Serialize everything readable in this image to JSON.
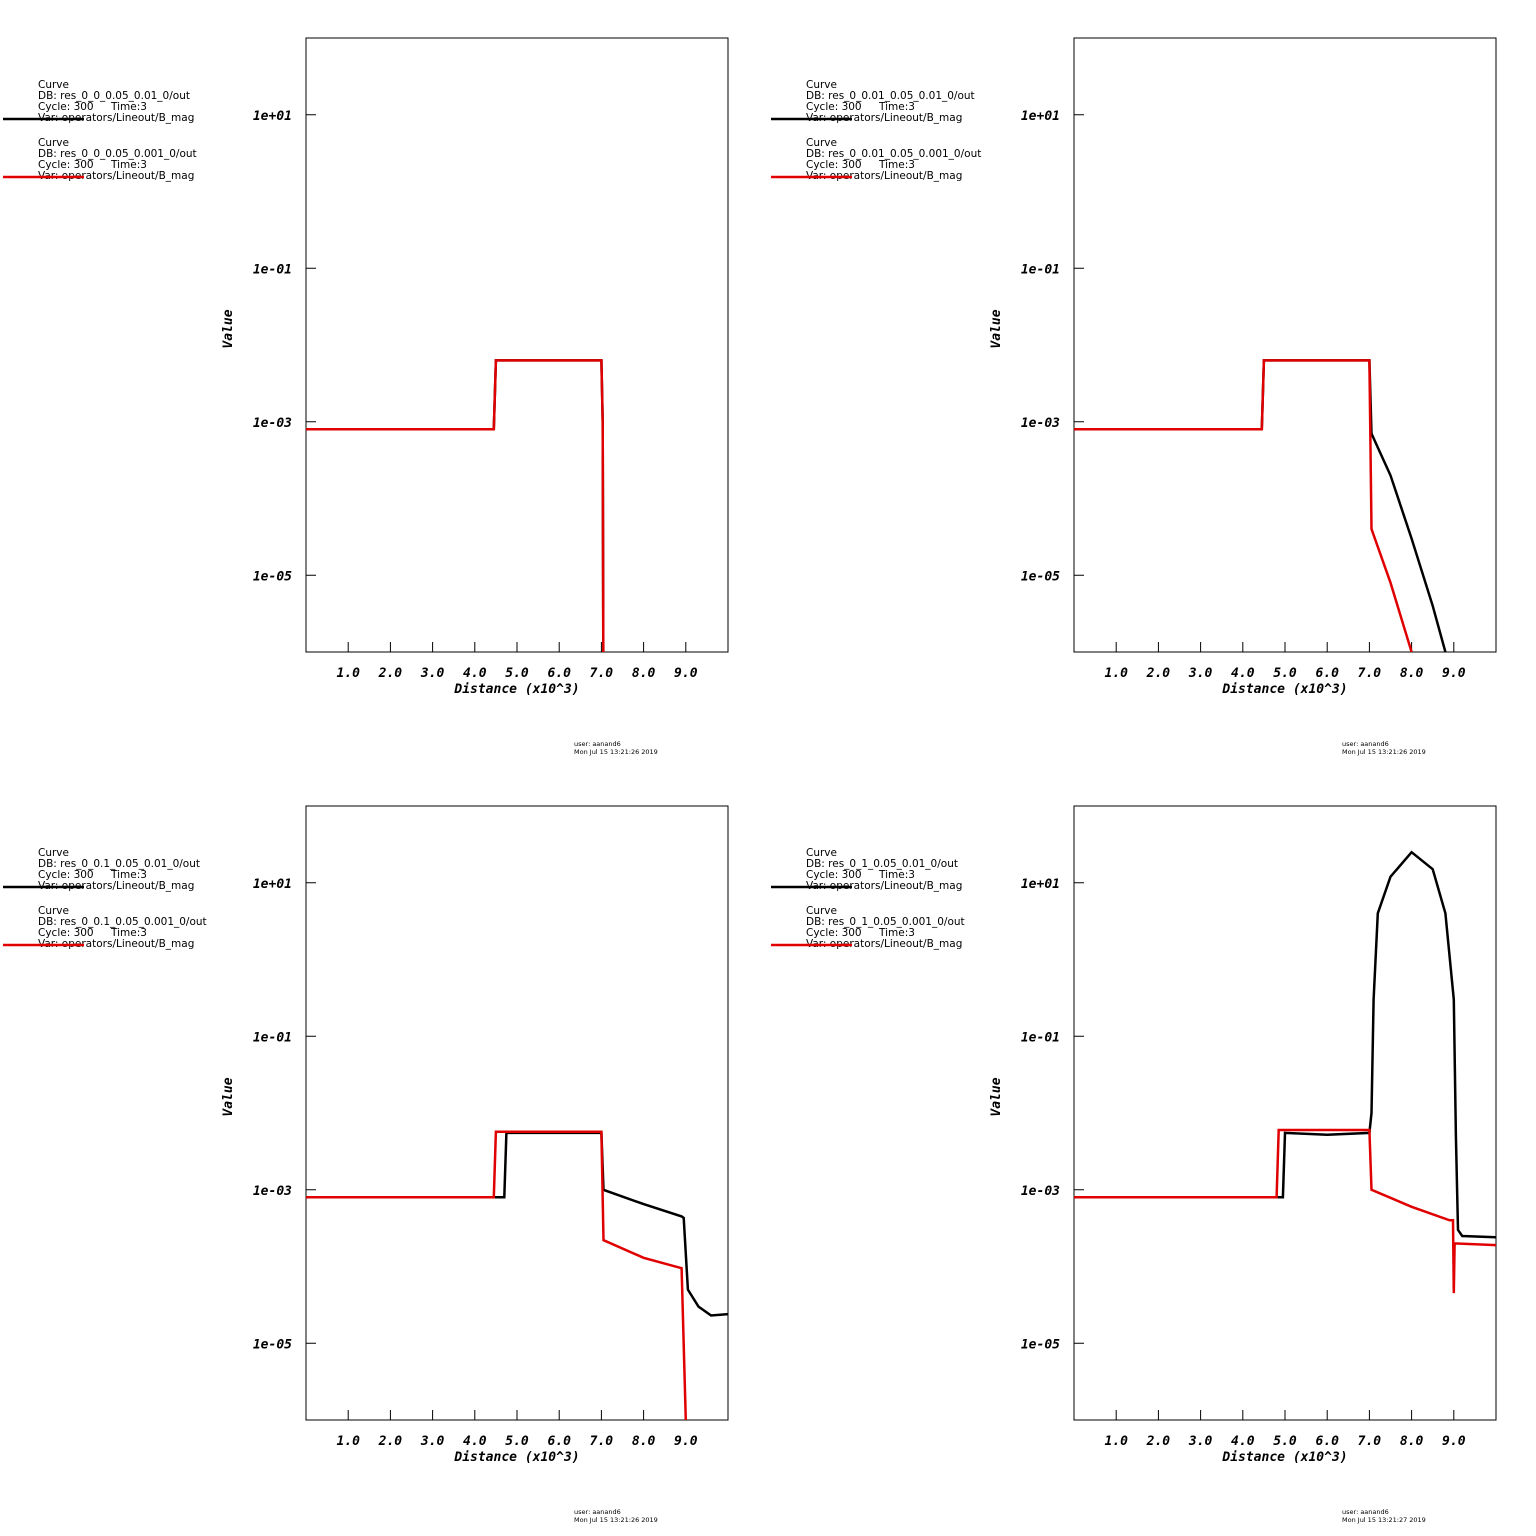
{
  "chart_data": [
    {
      "type": "line",
      "log_y": true,
      "x_label": "Distance (x10^3)",
      "y_label": "Value",
      "xlim": [
        0,
        10
      ],
      "ylim": [
        1e-06,
        100
      ],
      "xticks": [
        {
          "value": 1,
          "label": "1.0"
        },
        {
          "value": 2,
          "label": "2.0"
        },
        {
          "value": 3,
          "label": "3.0"
        },
        {
          "value": 4,
          "label": "4.0"
        },
        {
          "value": 5,
          "label": "5.0"
        },
        {
          "value": 6,
          "label": "6.0"
        },
        {
          "value": 7,
          "label": "7.0"
        },
        {
          "value": 8,
          "label": "8.0"
        },
        {
          "value": 9,
          "label": "9.0"
        }
      ],
      "yticks": [
        {
          "value": 10,
          "label": "1e+01"
        },
        {
          "value": 0.1,
          "label": "1e-01"
        },
        {
          "value": 0.001,
          "label": "1e-03"
        },
        {
          "value": 1e-05,
          "label": "1e-05"
        }
      ],
      "user": "user: aanand6",
      "date": "Mon Jul 15 13:21:26 2019",
      "series": [
        {
          "name": "Curve",
          "db": "DB: res_0_0_0.05_0.01_0/out",
          "cycle": "Cycle: 300",
          "time": "Time:3",
          "var": "Var: operators/Lineout/B_mag",
          "color": "#000000",
          "x": [
            0,
            4.45,
            4.5,
            7.0,
            7.03,
            7.05
          ],
          "values": [
            0.0008,
            0.0008,
            0.0063,
            0.0063,
            0.001,
            1e-07
          ]
        },
        {
          "name": "Curve",
          "db": "DB: res_0_0_0.05_0.001_0/out",
          "cycle": "Cycle: 300",
          "time": "Time:3",
          "var": "Var: operators/Lineout/B_mag",
          "color": "#e00000",
          "x": [
            0,
            4.45,
            4.5,
            7.0,
            7.03,
            7.05
          ],
          "values": [
            0.0008,
            0.0008,
            0.0063,
            0.0063,
            0.001,
            1e-07
          ]
        }
      ]
    },
    {
      "type": "line",
      "log_y": true,
      "x_label": "Distance (x10^3)",
      "y_label": "Value",
      "xlim": [
        0,
        10
      ],
      "ylim": [
        1e-06,
        100
      ],
      "xticks": [
        {
          "value": 1,
          "label": "1.0"
        },
        {
          "value": 2,
          "label": "2.0"
        },
        {
          "value": 3,
          "label": "3.0"
        },
        {
          "value": 4,
          "label": "4.0"
        },
        {
          "value": 5,
          "label": "5.0"
        },
        {
          "value": 6,
          "label": "6.0"
        },
        {
          "value": 7,
          "label": "7.0"
        },
        {
          "value": 8,
          "label": "8.0"
        },
        {
          "value": 9,
          "label": "9.0"
        }
      ],
      "yticks": [
        {
          "value": 10,
          "label": "1e+01"
        },
        {
          "value": 0.1,
          "label": "1e-01"
        },
        {
          "value": 0.001,
          "label": "1e-03"
        },
        {
          "value": 1e-05,
          "label": "1e-05"
        }
      ],
      "user": "user: aanand6",
      "date": "Mon Jul 15 13:21:26 2019",
      "series": [
        {
          "name": "Curve",
          "db": "DB: res_0_0.01_0.05_0.01_0/out",
          "cycle": "Cycle: 300",
          "time": "Time:3",
          "var": "Var: operators/Lineout/B_mag",
          "color": "#000000",
          "x": [
            0,
            4.45,
            4.5,
            7.0,
            7.05,
            7.5,
            8.0,
            8.5,
            8.8
          ],
          "values": [
            0.0008,
            0.0008,
            0.0063,
            0.0063,
            0.0007,
            0.0002,
            3e-05,
            4e-06,
            1e-06
          ]
        },
        {
          "name": "Curve",
          "db": "DB: res_0_0.01_0.05_0.001_0/out",
          "cycle": "Cycle: 300",
          "time": "Time:3",
          "var": "Var: operators/Lineout/B_mag",
          "color": "#e00000",
          "x": [
            0,
            4.45,
            4.5,
            7.0,
            7.05,
            7.5,
            8.0
          ],
          "values": [
            0.0008,
            0.0008,
            0.0063,
            0.0063,
            4e-05,
            8e-06,
            1e-06
          ]
        }
      ]
    },
    {
      "type": "line",
      "log_y": true,
      "x_label": "Distance (x10^3)",
      "y_label": "Value",
      "xlim": [
        0,
        10
      ],
      "ylim": [
        1e-06,
        100
      ],
      "xticks": [
        {
          "value": 1,
          "label": "1.0"
        },
        {
          "value": 2,
          "label": "2.0"
        },
        {
          "value": 3,
          "label": "3.0"
        },
        {
          "value": 4,
          "label": "4.0"
        },
        {
          "value": 5,
          "label": "5.0"
        },
        {
          "value": 6,
          "label": "6.0"
        },
        {
          "value": 7,
          "label": "7.0"
        },
        {
          "value": 8,
          "label": "8.0"
        },
        {
          "value": 9,
          "label": "9.0"
        }
      ],
      "yticks": [
        {
          "value": 10,
          "label": "1e+01"
        },
        {
          "value": 0.1,
          "label": "1e-01"
        },
        {
          "value": 0.001,
          "label": "1e-03"
        },
        {
          "value": 1e-05,
          "label": "1e-05"
        }
      ],
      "user": "user: aanand6",
      "date": "Mon Jul 15 13:21:26 2019",
      "series": [
        {
          "name": "Curve",
          "db": "DB: res_0_0.1_0.05_0.01_0/out",
          "cycle": "Cycle: 300",
          "time": "Time:3",
          "var": "Var: operators/Lineout/B_mag",
          "color": "#000000",
          "x": [
            0,
            4.7,
            4.75,
            7.0,
            7.05,
            8.0,
            8.9,
            8.95,
            9.05,
            9.3,
            9.6,
            10
          ],
          "values": [
            0.0008,
            0.0008,
            0.0055,
            0.0055,
            0.001,
            0.00065,
            0.00045,
            0.00043,
            5e-05,
            3e-05,
            2.3e-05,
            2.4e-05
          ]
        },
        {
          "name": "Curve",
          "db": "DB: res_0_0.1_0.05_0.001_0/out",
          "cycle": "Cycle: 300",
          "time": "Time:3",
          "var": "Var: operators/Lineout/B_mag",
          "color": "#e00000",
          "x": [
            0,
            4.45,
            4.5,
            7.0,
            7.05,
            8.0,
            8.9,
            9.05
          ],
          "values": [
            0.0008,
            0.0008,
            0.0057,
            0.0057,
            0.00022,
            0.00013,
            9.5e-05,
            1e-07
          ]
        }
      ]
    },
    {
      "type": "line",
      "log_y": true,
      "x_label": "Distance (x10^3)",
      "y_label": "Value",
      "xlim": [
        0,
        10
      ],
      "ylim": [
        1e-06,
        100
      ],
      "xticks": [
        {
          "value": 1,
          "label": "1.0"
        },
        {
          "value": 2,
          "label": "2.0"
        },
        {
          "value": 3,
          "label": "3.0"
        },
        {
          "value": 4,
          "label": "4.0"
        },
        {
          "value": 5,
          "label": "5.0"
        },
        {
          "value": 6,
          "label": "6.0"
        },
        {
          "value": 7,
          "label": "7.0"
        },
        {
          "value": 8,
          "label": "8.0"
        },
        {
          "value": 9,
          "label": "9.0"
        }
      ],
      "yticks": [
        {
          "value": 10,
          "label": "1e+01"
        },
        {
          "value": 0.1,
          "label": "1e-01"
        },
        {
          "value": 0.001,
          "label": "1e-03"
        },
        {
          "value": 1e-05,
          "label": "1e-05"
        }
      ],
      "user": "user: aanand6",
      "date": "Mon Jul 15 13:21:27 2019",
      "series": [
        {
          "name": "Curve",
          "db": "DB: res_0_1_0.05_0.01_0/out",
          "cycle": "Cycle: 300",
          "time": "Time:3",
          "var": "Var: operators/Lineout/B_mag",
          "color": "#000000",
          "x": [
            0,
            4.95,
            5.0,
            6.0,
            7.0,
            7.05,
            7.1,
            7.2,
            7.5,
            8.0,
            8.5,
            8.8,
            9.0,
            9.05,
            9.1,
            9.2,
            10
          ],
          "values": [
            0.0008,
            0.0008,
            0.0055,
            0.0052,
            0.0055,
            0.01,
            0.3,
            4,
            12,
            25,
            15,
            4,
            0.3,
            0.005,
            0.0003,
            0.00025,
            0.00024
          ]
        },
        {
          "name": "Curve",
          "db": "DB: res_0_1_0.05_0.001_0/out",
          "cycle": "Cycle: 300",
          "time": "Time:3",
          "var": "Var: operators/Lineout/B_mag",
          "color": "#e00000",
          "x": [
            0,
            4.8,
            4.85,
            7.0,
            7.05,
            8.0,
            8.9,
            8.98,
            9.0,
            9.02,
            10
          ],
          "values": [
            0.0008,
            0.0008,
            0.006,
            0.006,
            0.001,
            0.0006,
            0.0004,
            0.0004,
            4.5e-05,
            0.0002,
            0.00019
          ]
        }
      ]
    }
  ]
}
